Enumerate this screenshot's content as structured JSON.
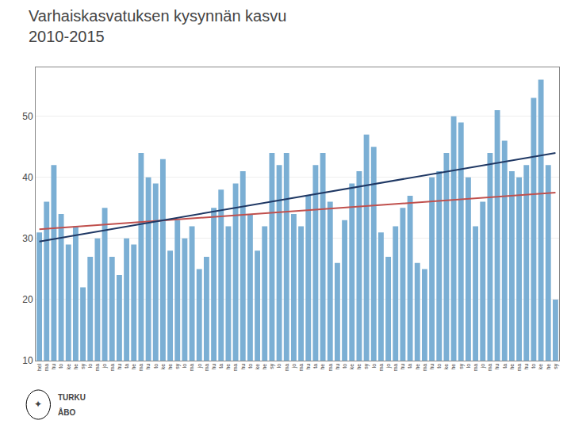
{
  "chart_data": {
    "type": "bar",
    "title": "Varhaiskasvatuksen kysynnän kasvu",
    "subtitle": "2010-2015",
    "categories": [
      "hel",
      "ma",
      "hu",
      "to",
      "ke",
      "he",
      "sy",
      "lo",
      "ma",
      "jo",
      "ma",
      "hu",
      "ta",
      "he",
      "ma",
      "hu",
      "to",
      "ke",
      "he",
      "sy",
      "lo",
      "ma",
      "jo",
      "ma",
      "hu",
      "ta",
      "he",
      "ma",
      "hu",
      "to",
      "ke",
      "he",
      "sy",
      "lo",
      "ma",
      "jo",
      "ma",
      "hu",
      "ta",
      "he",
      "ma",
      "hu",
      "to",
      "ke",
      "he",
      "sy",
      "lo",
      "ma",
      "jo",
      "ma",
      "hu",
      "ta",
      "he",
      "ma",
      "hu",
      "to",
      "ke",
      "he",
      "sy",
      "lo",
      "ma",
      "jo",
      "ma",
      "hu",
      "ta",
      "he",
      "ma",
      "hu",
      "to",
      "ke",
      "he",
      "sy"
    ],
    "series": [
      {
        "type": "bar",
        "color": "#7BAFD4",
        "values": [
          31,
          36,
          42,
          34,
          29,
          32,
          22,
          27,
          30,
          35,
          27,
          24,
          30,
          29,
          44,
          40,
          39,
          43,
          28,
          33,
          30,
          32,
          25,
          27,
          35,
          38,
          32,
          39,
          41,
          34,
          28,
          32,
          44,
          42,
          44,
          34,
          32,
          37,
          42,
          44,
          36,
          26,
          33,
          39,
          41,
          47,
          45,
          31,
          27,
          32,
          35,
          37,
          26,
          25,
          40,
          41,
          44,
          50,
          49,
          40,
          32,
          36,
          44,
          51,
          46,
          41,
          40,
          42,
          53,
          56,
          42,
          20
        ]
      },
      {
        "type": "line",
        "color": "#C0504D",
        "values": [
          31.5,
          null,
          null,
          null,
          null,
          null,
          null,
          null,
          null,
          null,
          null,
          null,
          null,
          null,
          null,
          null,
          null,
          null,
          null,
          null,
          null,
          null,
          null,
          null,
          null,
          null,
          null,
          null,
          null,
          null,
          null,
          null,
          null,
          null,
          null,
          null,
          null,
          null,
          null,
          null,
          null,
          null,
          null,
          null,
          null,
          null,
          null,
          null,
          null,
          null,
          null,
          null,
          null,
          null,
          null,
          null,
          null,
          null,
          null,
          null,
          null,
          null,
          null,
          null,
          null,
          null,
          null,
          null,
          null,
          null,
          null,
          37.5
        ]
      },
      {
        "type": "line",
        "color": "#1F3864",
        "values": [
          29.5,
          null,
          null,
          null,
          null,
          null,
          null,
          null,
          null,
          null,
          null,
          null,
          null,
          null,
          null,
          null,
          null,
          null,
          null,
          null,
          null,
          null,
          null,
          null,
          null,
          null,
          null,
          null,
          null,
          null,
          null,
          null,
          null,
          null,
          null,
          null,
          null,
          null,
          null,
          null,
          null,
          null,
          null,
          null,
          null,
          null,
          null,
          null,
          null,
          null,
          null,
          null,
          null,
          null,
          null,
          null,
          null,
          null,
          null,
          null,
          null,
          null,
          null,
          null,
          null,
          null,
          null,
          null,
          null,
          null,
          null,
          44.0
        ]
      }
    ],
    "ylim": [
      10,
      58
    ],
    "yticks": [
      10,
      20,
      30,
      40,
      50
    ],
    "grid": true,
    "annotations": [
      "✦",
      "TURKU",
      "ÅBO"
    ]
  }
}
